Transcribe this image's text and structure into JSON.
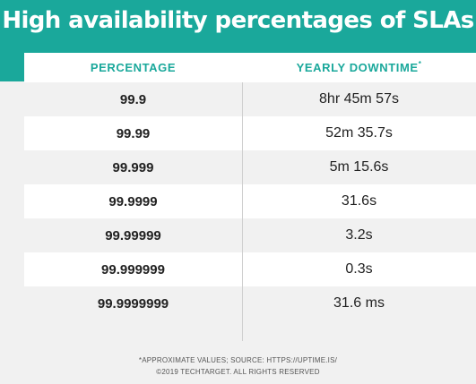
{
  "title": "High availability percentages of SLAs",
  "table": {
    "headers": {
      "percentage": "PERCENTAGE",
      "downtime": "YEARLY DOWNTIME",
      "downtime_mark": "*"
    },
    "rows": [
      {
        "percentage": "99.9",
        "downtime": "8hr 45m 57s"
      },
      {
        "percentage": "99.99",
        "downtime": "52m 35.7s"
      },
      {
        "percentage": "99.999",
        "downtime": "5m 15.6s"
      },
      {
        "percentage": "99.9999",
        "downtime": "31.6s"
      },
      {
        "percentage": "99.99999",
        "downtime": "3.2s"
      },
      {
        "percentage": "99.999999",
        "downtime": "0.3s"
      },
      {
        "percentage": "99.9999999",
        "downtime": "31.6 ms"
      }
    ]
  },
  "footer": {
    "note": "*APPROXIMATE VALUES; SOURCE: HTTPS://UPTIME.IS/",
    "copyright": "©2019 TECHTARGET. ALL RIGHTS RESERVED"
  },
  "colors": {
    "accent": "#1aa89b",
    "row_alt": "#f1f1f1",
    "text": "#222222"
  }
}
